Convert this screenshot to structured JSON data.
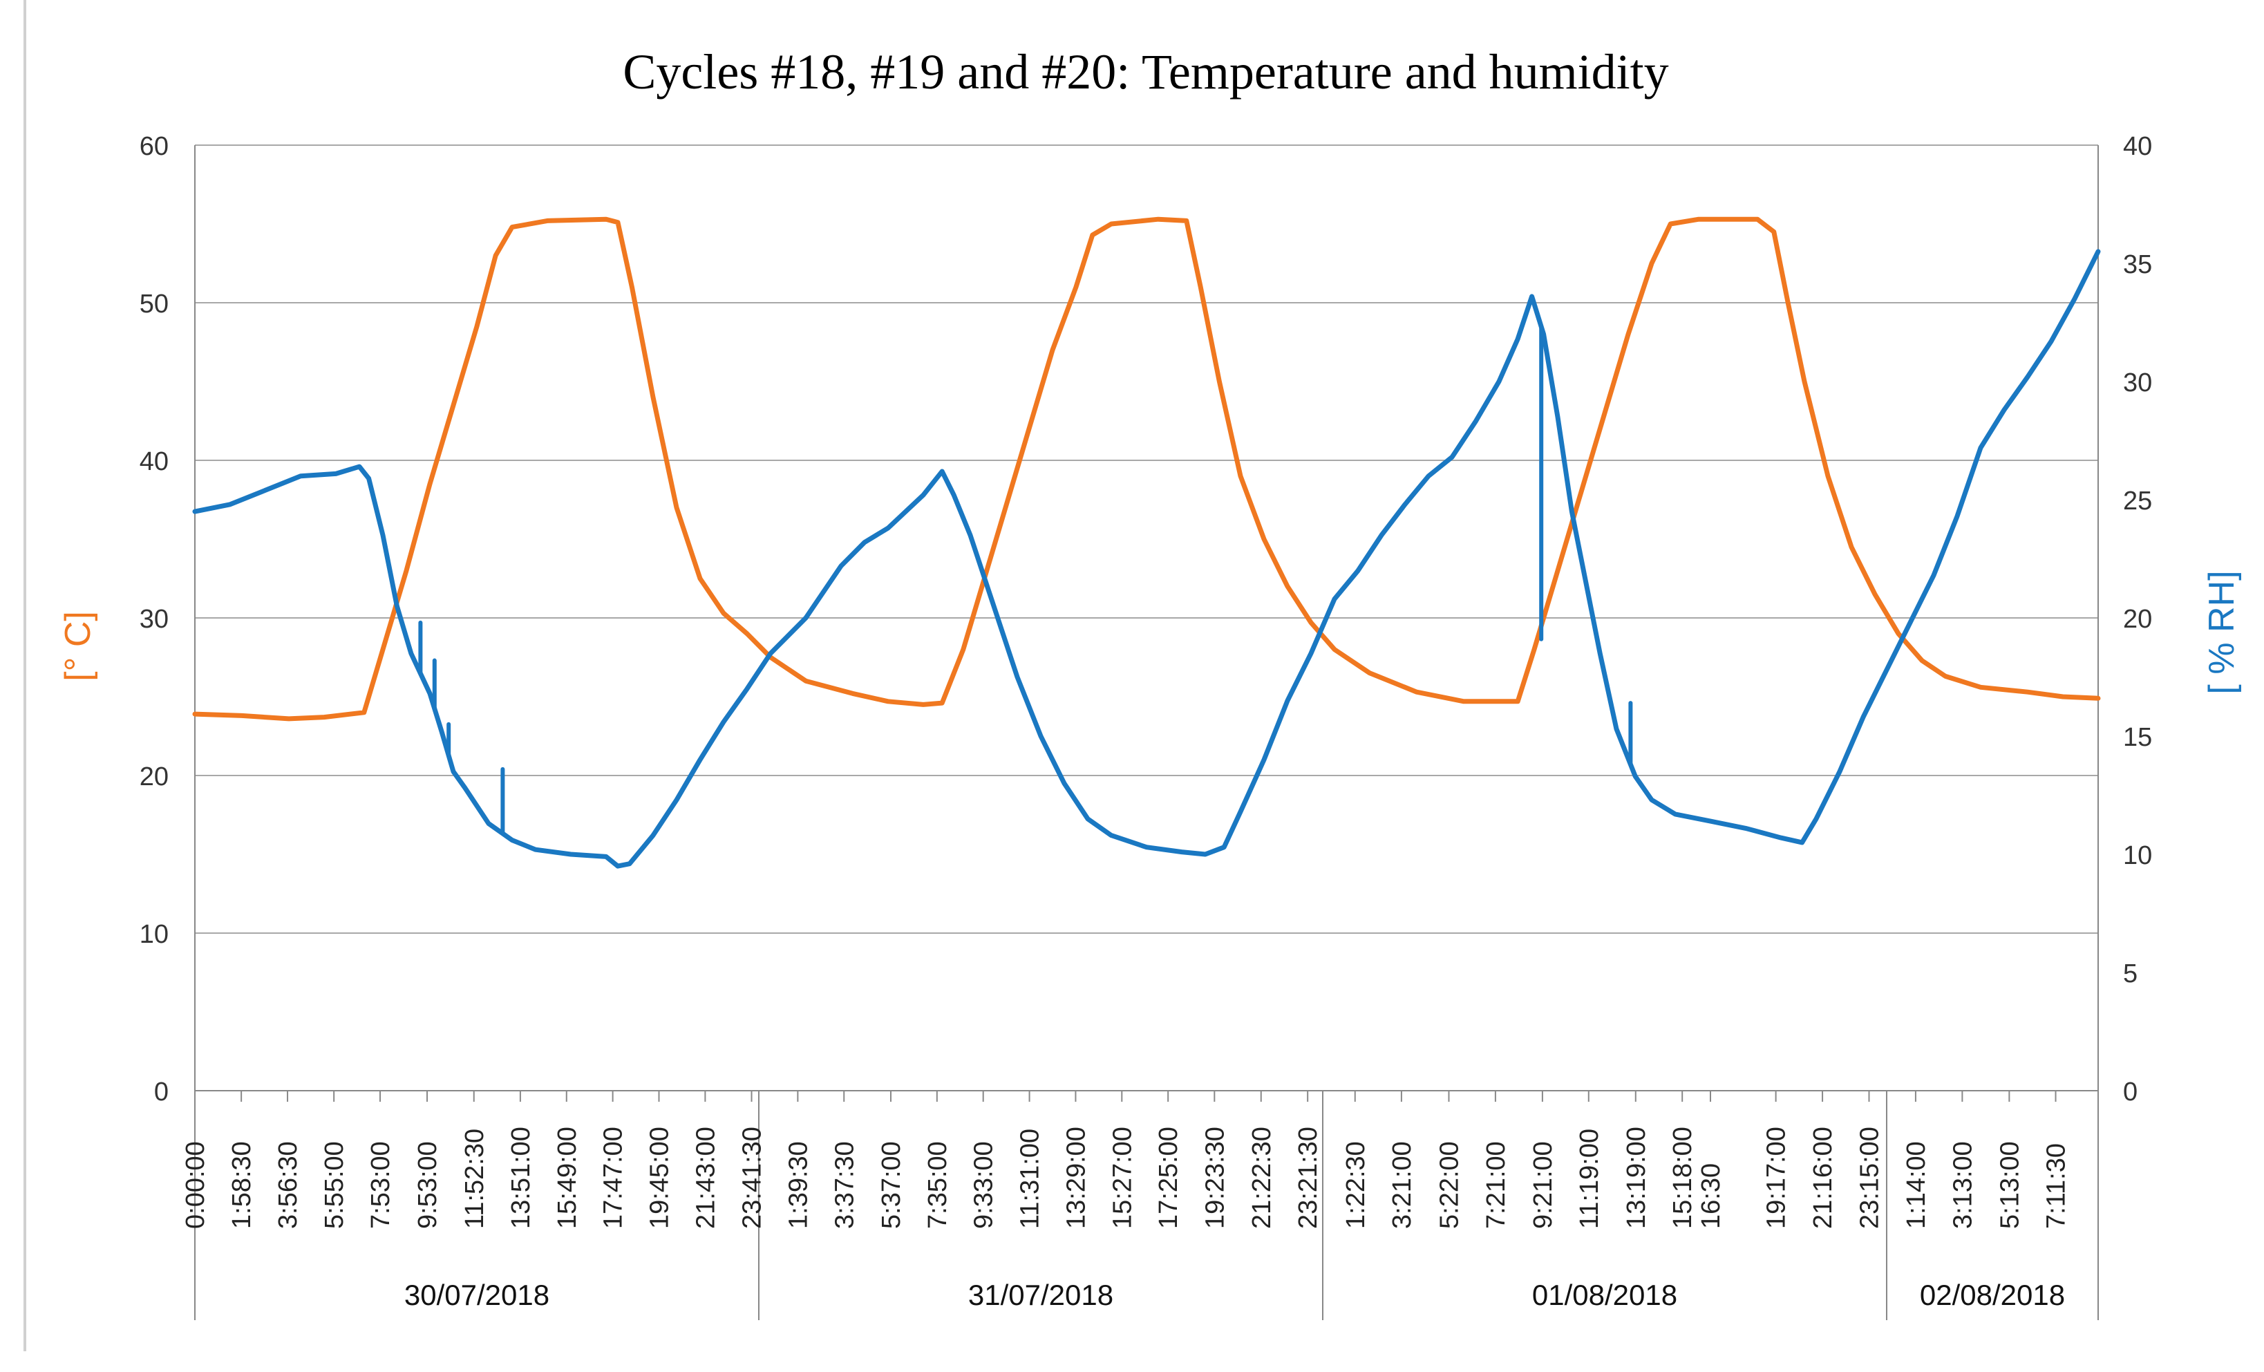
{
  "chart_data": {
    "type": "line",
    "title": "Cycles #18, #19 and #20: Temperature and humidity",
    "y_left_label": "[° C]",
    "y_right_label": "[ % RH]",
    "y_left_range": [
      0,
      60
    ],
    "y_left_ticks": [
      0,
      10,
      20,
      30,
      40,
      50,
      60
    ],
    "y_right_range": [
      0,
      40
    ],
    "y_right_ticks": [
      0,
      5,
      10,
      15,
      20,
      25,
      30,
      35,
      40
    ],
    "x_unit": "hours since 30/07/2018 0:00:00",
    "x_range": [
      0,
      81
    ],
    "grid": true,
    "x_tick_labels": [
      "0:00:00",
      "1:58:30",
      "3:56:30",
      "5:55:00",
      "7:53:00",
      "9:53:00",
      "11:52:30",
      "13:51:00",
      "15:49:00",
      "17:47:00",
      "19:45:00",
      "21:43:00",
      "23:41:30",
      "1:39:30",
      "3:37:30",
      "5:37:00",
      "7:35:00",
      "9:33:00",
      "11:31:00",
      "13:29:00",
      "15:27:00",
      "17:25:00",
      "19:23:30",
      "21:22:30",
      "23:21:30",
      "1:22:30",
      "3:21:00",
      "5:22:00",
      "7:21:00",
      "9:21:00",
      "11:19:00",
      "13:19:00",
      "15:18:00",
      "16:30",
      "19:17:00",
      "21:16:00",
      "23:15:00",
      "1:14:00",
      "3:13:00",
      "5:13:00",
      "7:11:30"
    ],
    "x_tick_hours": [
      0,
      1.975,
      3.942,
      5.917,
      7.883,
      9.883,
      11.875,
      13.85,
      15.817,
      17.783,
      19.75,
      21.717,
      23.692,
      25.658,
      27.625,
      29.617,
      31.583,
      33.55,
      35.517,
      37.483,
      39.45,
      41.417,
      43.392,
      45.375,
      47.358,
      49.375,
      51.35,
      53.367,
      55.35,
      57.35,
      59.317,
      61.317,
      63.3,
      64.5,
      67.283,
      69.267,
      71.25,
      73.233,
      75.217,
      77.217,
      79.192
    ],
    "date_groups": [
      {
        "label": "30/07/2018",
        "start_hour": 0,
        "end_hour": 24
      },
      {
        "label": "31/07/2018",
        "start_hour": 24,
        "end_hour": 48
      },
      {
        "label": "01/08/2018",
        "start_hour": 48,
        "end_hour": 72
      },
      {
        "label": "02/08/2018",
        "start_hour": 72,
        "end_hour": 81
      }
    ],
    "series": [
      {
        "name": "Temperature",
        "axis": "left",
        "unit": "°C",
        "color": "#F07820",
        "points": [
          [
            0,
            23.9
          ],
          [
            2,
            23.8
          ],
          [
            4,
            23.6
          ],
          [
            5.5,
            23.7
          ],
          [
            7.2,
            24.0
          ],
          [
            8,
            28
          ],
          [
            9,
            33
          ],
          [
            10,
            38.5
          ],
          [
            11,
            43.5
          ],
          [
            12,
            48.5
          ],
          [
            12.8,
            53
          ],
          [
            13.5,
            54.8
          ],
          [
            15,
            55.2
          ],
          [
            17.5,
            55.3
          ],
          [
            18,
            55.1
          ],
          [
            18.6,
            51
          ],
          [
            19.5,
            44
          ],
          [
            20.5,
            37
          ],
          [
            21.5,
            32.5
          ],
          [
            22.5,
            30.3
          ],
          [
            23.5,
            29
          ],
          [
            24.5,
            27.5
          ],
          [
            26,
            26
          ],
          [
            28,
            25.2
          ],
          [
            29.5,
            24.7
          ],
          [
            31,
            24.5
          ],
          [
            31.8,
            24.6
          ],
          [
            32.7,
            28
          ],
          [
            33.5,
            32
          ],
          [
            34.5,
            37
          ],
          [
            35.5,
            42
          ],
          [
            36.5,
            47
          ],
          [
            37.5,
            51
          ],
          [
            38.2,
            54.3
          ],
          [
            39,
            55
          ],
          [
            41,
            55.3
          ],
          [
            42.2,
            55.2
          ],
          [
            42.8,
            51
          ],
          [
            43.6,
            45
          ],
          [
            44.5,
            39
          ],
          [
            45.5,
            35
          ],
          [
            46.5,
            32
          ],
          [
            47.5,
            29.7
          ],
          [
            48.5,
            28
          ],
          [
            50,
            26.5
          ],
          [
            52,
            25.3
          ],
          [
            54,
            24.7
          ],
          [
            56.3,
            24.7
          ],
          [
            57,
            28
          ],
          [
            58,
            33
          ],
          [
            59,
            38
          ],
          [
            60,
            43
          ],
          [
            61,
            48
          ],
          [
            62,
            52.5
          ],
          [
            62.8,
            55
          ],
          [
            64,
            55.3
          ],
          [
            66.5,
            55.3
          ],
          [
            67.2,
            54.5
          ],
          [
            67.8,
            50
          ],
          [
            68.5,
            45
          ],
          [
            69.5,
            39
          ],
          [
            70.5,
            34.5
          ],
          [
            71.5,
            31.5
          ],
          [
            72.5,
            29
          ],
          [
            73.5,
            27.3
          ],
          [
            74.5,
            26.3
          ],
          [
            76,
            25.6
          ],
          [
            78,
            25.3
          ],
          [
            79.5,
            25
          ],
          [
            81,
            24.9
          ]
        ]
      },
      {
        "name": "Humidity",
        "axis": "right",
        "unit": "% RH",
        "color": "#1A78C2",
        "points": [
          [
            0,
            24.5
          ],
          [
            1.5,
            24.8
          ],
          [
            3,
            25.4
          ],
          [
            4.5,
            26
          ],
          [
            6,
            26.1
          ],
          [
            7,
            26.4
          ],
          [
            7.4,
            25.9
          ],
          [
            8,
            23.5
          ],
          [
            8.6,
            20.5
          ],
          [
            9.2,
            18.5
          ],
          [
            10,
            16.8
          ],
          [
            10.5,
            15.2
          ],
          [
            11,
            13.5
          ],
          [
            11.5,
            12.8
          ],
          [
            12.5,
            11.3
          ],
          [
            13.5,
            10.6
          ],
          [
            14.5,
            10.2
          ],
          [
            16,
            10
          ],
          [
            17.5,
            9.9
          ],
          [
            18,
            9.5
          ],
          [
            18.5,
            9.6
          ],
          [
            19.5,
            10.8
          ],
          [
            20.5,
            12.3
          ],
          [
            21.5,
            14
          ],
          [
            22.5,
            15.6
          ],
          [
            23.5,
            17
          ],
          [
            24.5,
            18.5
          ],
          [
            26,
            20
          ],
          [
            27.5,
            22.2
          ],
          [
            28.5,
            23.2
          ],
          [
            29.5,
            23.8
          ],
          [
            31,
            25.2
          ],
          [
            31.8,
            26.2
          ],
          [
            32.3,
            25.2
          ],
          [
            33,
            23.5
          ],
          [
            34,
            20.5
          ],
          [
            35,
            17.5
          ],
          [
            36,
            15
          ],
          [
            37,
            13
          ],
          [
            38,
            11.5
          ],
          [
            39,
            10.8
          ],
          [
            40.5,
            10.3
          ],
          [
            42,
            10.1
          ],
          [
            43,
            10
          ],
          [
            43.8,
            10.3
          ],
          [
            44.5,
            11.8
          ],
          [
            45.5,
            14
          ],
          [
            46.5,
            16.5
          ],
          [
            47.5,
            18.5
          ],
          [
            48.5,
            20.8
          ],
          [
            49.5,
            22
          ],
          [
            50.5,
            23.5
          ],
          [
            51.5,
            24.8
          ],
          [
            52.5,
            26
          ],
          [
            53.5,
            26.8
          ],
          [
            54.5,
            28.3
          ],
          [
            55.5,
            30
          ],
          [
            56.3,
            31.8
          ],
          [
            56.9,
            33.6
          ],
          [
            57.4,
            32
          ],
          [
            58,
            28.5
          ],
          [
            58.6,
            24.5
          ],
          [
            59.2,
            21.5
          ],
          [
            59.8,
            18.5
          ],
          [
            60.5,
            15.3
          ],
          [
            61.3,
            13.3
          ],
          [
            62,
            12.3
          ],
          [
            63,
            11.7
          ],
          [
            64.5,
            11.4
          ],
          [
            66,
            11.1
          ],
          [
            67.5,
            10.7
          ],
          [
            68.4,
            10.5
          ],
          [
            69,
            11.5
          ],
          [
            70,
            13.5
          ],
          [
            71,
            15.8
          ],
          [
            72,
            17.8
          ],
          [
            73,
            19.8
          ],
          [
            74,
            21.8
          ],
          [
            75,
            24.3
          ],
          [
            76,
            27.2
          ],
          [
            77,
            28.8
          ],
          [
            78,
            30.2
          ],
          [
            79,
            31.7
          ],
          [
            80,
            33.5
          ],
          [
            81,
            35.5
          ]
        ]
      }
    ],
    "humidity_spikes": [
      [
        9.6,
        19.8
      ],
      [
        10.2,
        18.2
      ],
      [
        10.8,
        15.5
      ],
      [
        13.1,
        13.6
      ],
      [
        57.3,
        19.1
      ],
      [
        61.1,
        16.4
      ]
    ]
  }
}
